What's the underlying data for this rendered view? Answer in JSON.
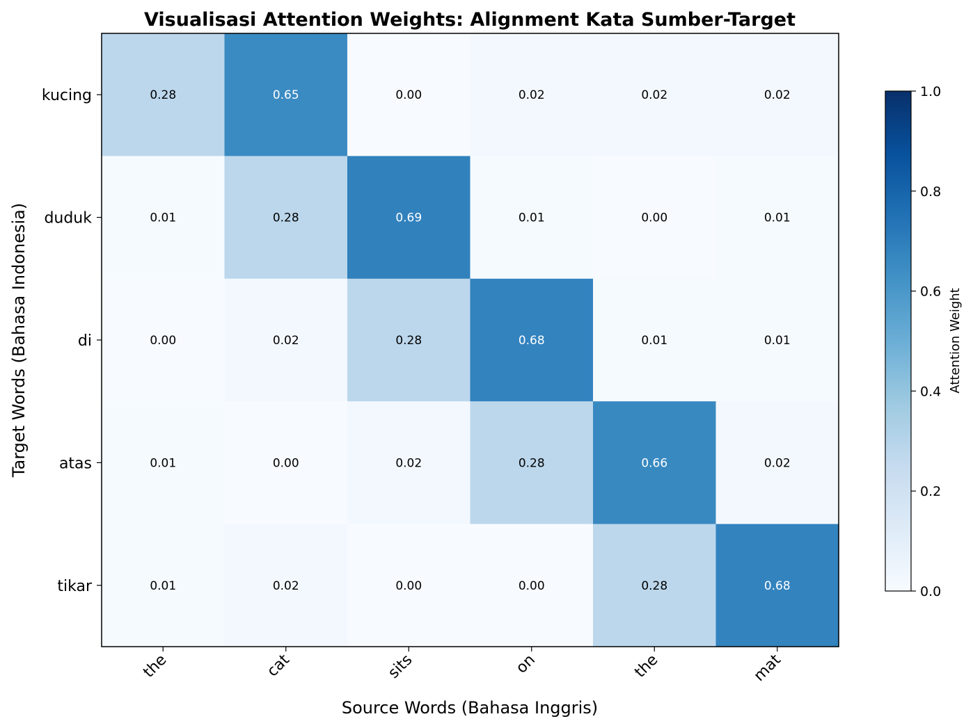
{
  "chart_data": {
    "type": "heatmap",
    "title": "Visualisasi Attention Weights: Alignment Kata Sumber-Target",
    "xlabel": "Source Words (Bahasa Inggris)",
    "ylabel": "Target Words (Bahasa Indonesia)",
    "x_categories": [
      "the",
      "cat",
      "sits",
      "on",
      "the",
      "mat"
    ],
    "y_categories": [
      "kucing",
      "duduk",
      "di",
      "atas",
      "tikar"
    ],
    "values": [
      [
        0.28,
        0.65,
        0.0,
        0.02,
        0.02,
        0.02
      ],
      [
        0.01,
        0.28,
        0.69,
        0.01,
        0.0,
        0.01
      ],
      [
        0.0,
        0.02,
        0.28,
        0.68,
        0.01,
        0.01
      ],
      [
        0.01,
        0.0,
        0.02,
        0.28,
        0.66,
        0.02
      ],
      [
        0.01,
        0.02,
        0.0,
        0.0,
        0.28,
        0.68
      ]
    ],
    "colormap": "Blues",
    "vmin": 0.0,
    "vmax": 1.0,
    "colorbar": {
      "label": "Attention Weight",
      "ticks": [
        "0.0",
        "0.2",
        "0.4",
        "0.6",
        "0.8",
        "1.0"
      ]
    }
  }
}
